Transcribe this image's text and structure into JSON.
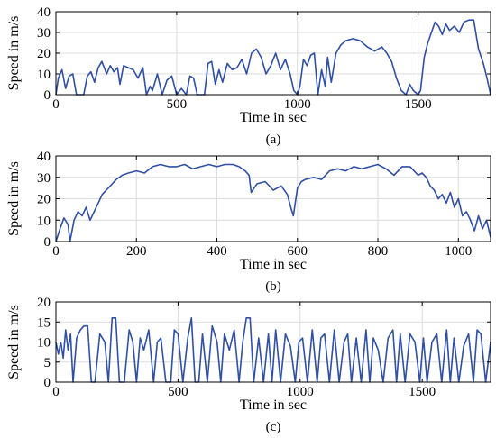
{
  "chart_data": [
    {
      "type": "line",
      "caption": "(a)",
      "xlabel": "Time in sec",
      "ylabel": "Speed in m/s",
      "xlim": [
        0,
        1800
      ],
      "ylim": [
        0,
        40
      ],
      "xticks": [
        0,
        500,
        1000,
        1500
      ],
      "yticks": [
        0,
        10,
        20,
        30,
        40
      ],
      "grid": true,
      "line_color": "#2f4fa8",
      "series": [
        {
          "x": [
            0,
            10,
            25,
            40,
            55,
            70,
            85,
            100,
            115,
            130,
            145,
            160,
            175,
            190,
            210,
            225,
            240,
            255,
            265,
            280,
            300,
            320,
            340,
            360,
            375,
            390,
            400,
            420,
            440,
            460,
            480,
            500,
            520,
            540,
            555,
            570,
            585,
            600,
            615,
            630,
            645,
            660,
            675,
            690,
            710,
            730,
            750,
            770,
            790,
            810,
            830,
            850,
            870,
            890,
            910,
            930,
            950,
            970,
            985,
            1000,
            1010,
            1025,
            1040,
            1055,
            1070,
            1085,
            1100,
            1115,
            1125,
            1140,
            1160,
            1180,
            1200,
            1230,
            1260,
            1290,
            1320,
            1350,
            1370,
            1390,
            1410,
            1430,
            1450,
            1465,
            1480,
            1500,
            1510,
            1525,
            1540,
            1555,
            1570,
            1585,
            1600,
            1615,
            1630,
            1650,
            1670,
            1690,
            1710,
            1730,
            1750,
            1770,
            1785,
            1800
          ],
          "y": [
            0,
            8,
            12,
            3,
            9,
            10,
            0,
            0,
            0,
            9,
            11,
            6,
            13,
            16,
            10,
            14,
            11,
            13,
            5,
            14,
            13,
            12,
            8,
            13,
            0,
            4,
            2,
            10,
            0,
            7,
            9,
            0,
            3,
            0,
            9,
            8,
            0,
            0,
            0,
            15,
            16,
            5,
            12,
            6,
            15,
            12,
            13,
            17,
            10,
            20,
            22,
            18,
            10,
            14,
            20,
            12,
            17,
            10,
            2,
            0,
            4,
            17,
            14,
            19,
            20,
            0,
            12,
            4,
            18,
            6,
            20,
            24,
            26,
            27,
            26,
            23,
            21,
            23,
            20,
            16,
            8,
            2,
            0,
            5,
            2,
            0,
            2,
            18,
            25,
            30,
            35,
            33,
            29,
            34,
            31,
            33,
            30,
            35,
            36,
            36,
            22,
            15,
            8,
            0
          ]
        }
      ]
    },
    {
      "type": "line",
      "caption": "(b)",
      "xlabel": "Time in sec",
      "ylabel": "Speed in m/s",
      "xlim": [
        0,
        1080
      ],
      "ylim": [
        0,
        40
      ],
      "xticks": [
        0,
        200,
        400,
        600,
        800,
        1000
      ],
      "yticks": [
        0,
        10,
        20,
        30,
        40
      ],
      "grid": true,
      "line_color": "#2f4fa8",
      "series": [
        {
          "x": [
            0,
            10,
            20,
            30,
            35,
            45,
            55,
            65,
            75,
            85,
            95,
            105,
            115,
            125,
            135,
            150,
            165,
            180,
            200,
            220,
            240,
            260,
            280,
            300,
            320,
            340,
            360,
            380,
            400,
            420,
            440,
            455,
            470,
            480,
            485,
            500,
            520,
            540,
            560,
            575,
            585,
            590,
            600,
            610,
            620,
            640,
            660,
            680,
            700,
            720,
            740,
            760,
            780,
            800,
            820,
            840,
            860,
            880,
            900,
            910,
            920,
            930,
            940,
            950,
            960,
            970,
            980,
            990,
            1000,
            1010,
            1020,
            1030,
            1040,
            1050,
            1060,
            1070,
            1080
          ],
          "y": [
            0,
            6,
            11,
            8,
            0,
            10,
            14,
            12,
            16,
            10,
            14,
            18,
            22,
            24,
            26,
            29,
            31,
            32,
            33,
            32,
            35,
            36,
            35,
            35,
            36,
            34,
            35,
            36,
            35,
            36,
            36,
            35,
            33,
            31,
            23,
            27,
            28,
            24,
            26,
            22,
            15,
            12,
            25,
            28,
            29,
            30,
            29,
            33,
            34,
            33,
            35,
            34,
            35,
            36,
            34,
            31,
            35,
            35,
            31,
            32,
            30,
            26,
            24,
            20,
            22,
            18,
            23,
            16,
            20,
            12,
            14,
            10,
            5,
            12,
            6,
            10,
            2
          ]
        }
      ]
    },
    {
      "type": "line",
      "caption": "(c)",
      "xlabel": "Time in sec",
      "ylabel": "Speed in m/s",
      "xlim": [
        0,
        1780
      ],
      "ylim": [
        0,
        20
      ],
      "xticks": [
        0,
        500,
        1000,
        1500
      ],
      "yticks": [
        0,
        5,
        10,
        15,
        20
      ],
      "grid": true,
      "line_color": "#2f4fa8",
      "series": [
        {
          "x": [
            0,
            10,
            20,
            30,
            40,
            50,
            60,
            70,
            85,
            100,
            115,
            130,
            145,
            160,
            180,
            200,
            215,
            230,
            245,
            260,
            280,
            300,
            315,
            330,
            345,
            360,
            380,
            400,
            415,
            430,
            450,
            470,
            485,
            500,
            520,
            540,
            555,
            570,
            585,
            600,
            620,
            640,
            660,
            675,
            690,
            710,
            730,
            750,
            765,
            780,
            795,
            810,
            830,
            850,
            870,
            885,
            900,
            920,
            940,
            960,
            980,
            995,
            1010,
            1030,
            1050,
            1070,
            1085,
            1100,
            1120,
            1140,
            1160,
            1180,
            1195,
            1210,
            1230,
            1250,
            1270,
            1285,
            1300,
            1320,
            1340,
            1360,
            1380,
            1395,
            1410,
            1430,
            1450,
            1470,
            1490,
            1505,
            1520,
            1540,
            1560,
            1580,
            1600,
            1615,
            1630,
            1650,
            1670,
            1690,
            1710,
            1725,
            1740,
            1760,
            1780
          ],
          "y": [
            10,
            7,
            10,
            6,
            13,
            8,
            12,
            0,
            11,
            13,
            14,
            14,
            0,
            0,
            12,
            10,
            0,
            16,
            16,
            0,
            0,
            13,
            10,
            0,
            11,
            8,
            13,
            0,
            10,
            11,
            0,
            0,
            13,
            12,
            0,
            11,
            16,
            0,
            0,
            12,
            0,
            14,
            10,
            0,
            12,
            8,
            13,
            0,
            10,
            16,
            16,
            0,
            11,
            0,
            12,
            0,
            13,
            0,
            12,
            9,
            0,
            10,
            11,
            0,
            13,
            0,
            11,
            12,
            0,
            13,
            0,
            10,
            12,
            0,
            11,
            0,
            13,
            0,
            11,
            8,
            0,
            11,
            13,
            0,
            12,
            0,
            12,
            10,
            0,
            11,
            0,
            10,
            12,
            0,
            13,
            0,
            11,
            0,
            9,
            12,
            0,
            13,
            12,
            0,
            10
          ]
        }
      ]
    }
  ]
}
